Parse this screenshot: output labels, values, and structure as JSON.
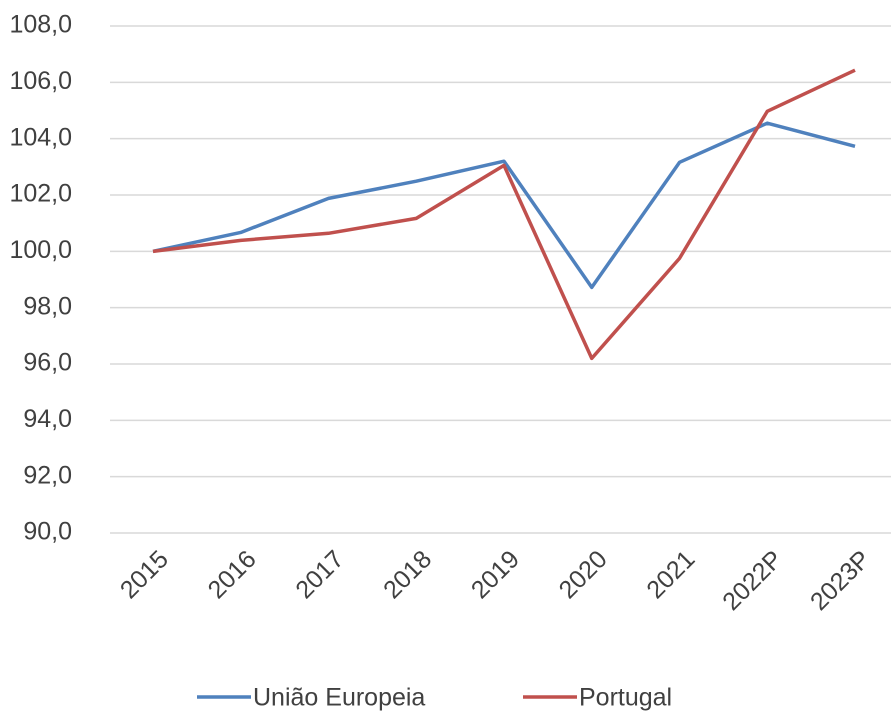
{
  "chart_data": {
    "type": "line",
    "categories": [
      "2015",
      "2016",
      "2017",
      "2018",
      "2019",
      "2020",
      "2021",
      "2022P",
      "2023P"
    ],
    "series": [
      {
        "name": "União Europeia",
        "color": "#4f81bd",
        "values": [
          100.0,
          100.67,
          101.88,
          102.49,
          103.2,
          98.72,
          103.16,
          104.55,
          103.73
        ]
      },
      {
        "name": "Portugal",
        "color": "#c0504d",
        "values": [
          100.0,
          100.39,
          100.64,
          101.17,
          103.05,
          96.2,
          99.75,
          104.97,
          106.43
        ]
      }
    ],
    "ylim": [
      90,
      108
    ],
    "yticks": [
      {
        "value": 90,
        "label": "90,0"
      },
      {
        "value": 92,
        "label": "92,0"
      },
      {
        "value": 94,
        "label": "94,0"
      },
      {
        "value": 96,
        "label": "96,0"
      },
      {
        "value": 98,
        "label": "98,0"
      },
      {
        "value": 100,
        "label": "100,0"
      },
      {
        "value": 102,
        "label": "102,0"
      },
      {
        "value": 104,
        "label": "104,0"
      },
      {
        "value": 106,
        "label": "106,0"
      },
      {
        "value": 108,
        "label": "108,0"
      }
    ],
    "grid": true,
    "legend": "bottom"
  }
}
